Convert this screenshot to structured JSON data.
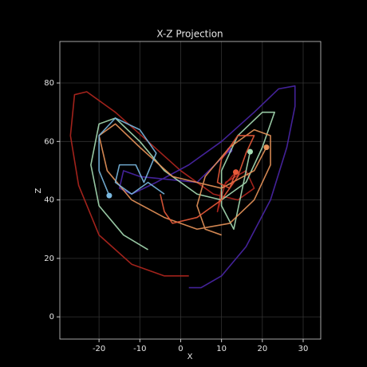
{
  "chart_data": {
    "type": "line",
    "title": "X-Z Projection",
    "x_label": "X",
    "y_label": "Z",
    "xlim": [
      -29.6,
      34.3
    ],
    "xticks": [
      -20,
      -10,
      0,
      10,
      20,
      30
    ],
    "ylim": [
      -7.6,
      94.2
    ],
    "yticks": [
      0,
      20,
      40,
      60,
      80
    ],
    "grid": true,
    "series": [
      {
        "color": "#b3261e",
        "x": [
          2,
          -4,
          -12,
          -20,
          -25,
          -27,
          -26,
          -23,
          -16,
          -8,
          0,
          8,
          14,
          18,
          16,
          11,
          9,
          10,
          13.5
        ],
        "values": [
          14,
          14,
          18,
          28,
          45,
          62,
          76,
          77,
          70,
          60,
          50,
          42,
          40,
          44,
          50,
          46,
          36,
          44,
          49.5
        ]
      },
      {
        "color": "#4a26a8",
        "x": [
          2,
          5,
          10,
          16,
          22,
          26,
          28,
          28,
          24,
          18,
          10,
          2,
          -6,
          -12,
          -15,
          -14,
          -10,
          4,
          12
        ],
        "values": [
          10,
          10,
          14,
          24,
          40,
          58,
          72,
          79,
          78,
          70,
          60,
          52,
          46,
          42,
          44,
          50,
          48,
          46,
          57
        ]
      },
      {
        "color": "#a6dcb4",
        "x": [
          -8,
          -14,
          -20,
          -22,
          -20,
          -16,
          -10,
          -4,
          4,
          10,
          16,
          20,
          23,
          20,
          14,
          10,
          10,
          13,
          17
        ],
        "values": [
          23,
          28,
          38,
          52,
          66,
          68,
          60,
          50,
          42,
          40,
          46,
          58,
          70,
          70,
          62,
          50,
          38,
          30,
          56.5
        ]
      },
      {
        "color": "#e8935a",
        "x": [
          10,
          6,
          4,
          6,
          12,
          18,
          22,
          22,
          18,
          12,
          4,
          -4,
          -12,
          -18,
          -20,
          -16,
          -10,
          -2,
          10,
          18,
          21
        ],
        "values": [
          28,
          30,
          38,
          48,
          58,
          64,
          62,
          52,
          40,
          32,
          30,
          34,
          40,
          50,
          62,
          66,
          58,
          48,
          44,
          50,
          58
        ]
      },
      {
        "color": "#7ab8e0",
        "x": [
          -4,
          -8,
          -12,
          -16,
          -15,
          -11,
          -9,
          -6,
          -10,
          -16,
          -20,
          -20,
          -17.5
        ],
        "values": [
          42,
          46,
          42,
          46,
          52,
          52,
          46,
          56,
          64,
          68,
          62,
          50,
          41.5
        ]
      },
      {
        "color": "#e85a3a",
        "x": [
          -5,
          -4,
          -2,
          4,
          10,
          14,
          16,
          18,
          14,
          10,
          9,
          12,
          13.5
        ],
        "values": [
          42,
          36,
          32,
          34,
          40,
          48,
          56,
          62,
          62,
          54,
          46,
          44,
          49.5
        ]
      }
    ]
  }
}
